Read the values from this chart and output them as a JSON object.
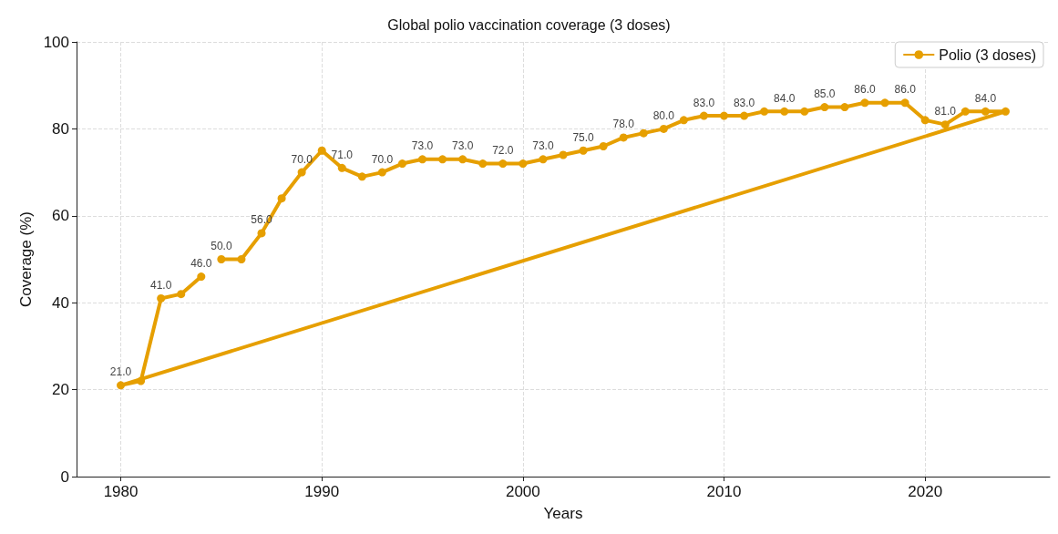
{
  "chart_data": {
    "type": "line",
    "title": "Global polio vaccination coverage (3 doses)",
    "xlabel": "Years",
    "ylabel": "Coverage (%)",
    "x": [
      1985,
      1986,
      1987,
      1988,
      1989,
      1990,
      1991,
      1992,
      1993,
      1994,
      1995,
      1996,
      1997,
      1998,
      1999,
      2000,
      2001,
      2002,
      2003,
      2004,
      2005,
      2006,
      2007,
      2008,
      2009,
      2010,
      2011,
      2012,
      2013,
      2014,
      2015,
      2016,
      2017,
      2018,
      2019,
      2020,
      2021,
      2022,
      2023,
      2024,
      1980,
      1981,
      1982,
      1983,
      1984
    ],
    "series": [
      {
        "name": "Polio (3 doses)",
        "color": "#e69f00",
        "values": [
          50,
          50,
          56,
          64,
          70,
          75,
          71,
          69,
          70,
          72,
          73,
          73,
          73,
          72,
          72,
          72,
          73,
          74,
          75,
          76,
          78,
          79,
          80,
          82,
          83,
          83,
          83,
          84,
          84,
          84,
          85,
          85,
          86,
          86,
          86,
          82,
          81,
          84,
          84,
          84,
          21,
          22,
          41,
          42,
          46
        ],
        "value_labels": [
          "50.0",
          null,
          "56.0",
          null,
          "70.0",
          null,
          "71.0",
          null,
          "70.0",
          null,
          "73.0",
          null,
          "73.0",
          null,
          "72.0",
          null,
          "73.0",
          null,
          "75.0",
          null,
          "78.0",
          null,
          "80.0",
          null,
          "83.0",
          null,
          "83.0",
          null,
          "84.0",
          null,
          "85.0",
          null,
          "86.0",
          null,
          "86.0",
          null,
          "81.0",
          null,
          "84.0",
          null,
          "21.0",
          null,
          "41.0",
          null,
          "46.0"
        ]
      }
    ],
    "xlim": [
      1977.8,
      2026.2
    ],
    "xticks": [
      1980,
      1990,
      2000,
      2010,
      2020
    ],
    "ylim": [
      0,
      100
    ],
    "yticks": [
      0,
      20,
      40,
      60,
      80,
      100
    ],
    "grid": true,
    "legend": "top right",
    "marker": "circle",
    "line_style": "solid"
  }
}
